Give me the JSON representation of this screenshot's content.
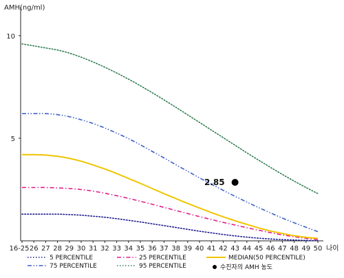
{
  "chart_data": {
    "type": "line",
    "ylabel": "AMH(ng/ml)",
    "xlabel": "나이",
    "ylim": [
      0,
      11
    ],
    "yticks": [
      5,
      10
    ],
    "x": [
      "16-25",
      "26",
      "27",
      "28",
      "29",
      "30",
      "31",
      "32",
      "33",
      "34",
      "35",
      "36",
      "37",
      "38",
      "39",
      "40",
      "41",
      "42",
      "43",
      "44",
      "45",
      "46",
      "47",
      "48",
      "49",
      "50"
    ],
    "series": [
      {
        "name": "5 PERCENTILE",
        "color": "#1a1a8c",
        "style": "dotted",
        "values": [
          1.3,
          1.3,
          1.3,
          1.3,
          1.28,
          1.25,
          1.2,
          1.15,
          1.08,
          1.0,
          0.92,
          0.83,
          0.74,
          0.65,
          0.56,
          0.47,
          0.39,
          0.31,
          0.24,
          0.18,
          0.13,
          0.09,
          0.06,
          0.04,
          0.02,
          0.01
        ]
      },
      {
        "name": "25 PERCENTILE",
        "color": "#e01b8a",
        "style": "dashdot",
        "values": [
          2.6,
          2.6,
          2.6,
          2.58,
          2.55,
          2.5,
          2.42,
          2.32,
          2.2,
          2.07,
          1.93,
          1.78,
          1.63,
          1.48,
          1.33,
          1.18,
          1.04,
          0.9,
          0.77,
          0.64,
          0.52,
          0.4,
          0.29,
          0.2,
          0.12,
          0.06
        ]
      },
      {
        "name": "MEDIAN(50 PERCENTILE)",
        "color": "#f0c400",
        "style": "solid",
        "values": [
          4.2,
          4.2,
          4.18,
          4.12,
          4.02,
          3.88,
          3.7,
          3.5,
          3.28,
          3.04,
          2.8,
          2.55,
          2.3,
          2.06,
          1.82,
          1.6,
          1.38,
          1.17,
          0.98,
          0.8,
          0.63,
          0.48,
          0.36,
          0.25,
          0.17,
          0.12
        ]
      },
      {
        "name": "75 PERCENTILE",
        "color": "#3b5fc8",
        "style": "dashdotdot",
        "values": [
          6.2,
          6.2,
          6.2,
          6.15,
          6.05,
          5.9,
          5.72,
          5.5,
          5.25,
          4.98,
          4.68,
          4.36,
          4.04,
          3.71,
          3.39,
          3.07,
          2.76,
          2.46,
          2.17,
          1.89,
          1.62,
          1.36,
          1.11,
          0.88,
          0.66,
          0.45
        ]
      },
      {
        "name": "95 PERCENTILE",
        "color": "#2e7d4f",
        "style": "dotted",
        "values": [
          9.6,
          9.5,
          9.4,
          9.3,
          9.15,
          8.95,
          8.72,
          8.46,
          8.18,
          7.88,
          7.56,
          7.22,
          6.87,
          6.51,
          6.14,
          5.77,
          5.4,
          5.03,
          4.66,
          4.29,
          3.93,
          3.58,
          3.24,
          2.91,
          2.6,
          2.3
        ]
      }
    ],
    "marker": {
      "label": "수진자의 AMH 농도",
      "x": "43",
      "y": 2.85,
      "value_label": "2.85"
    },
    "legend_placement": "bottom",
    "grid": false
  }
}
